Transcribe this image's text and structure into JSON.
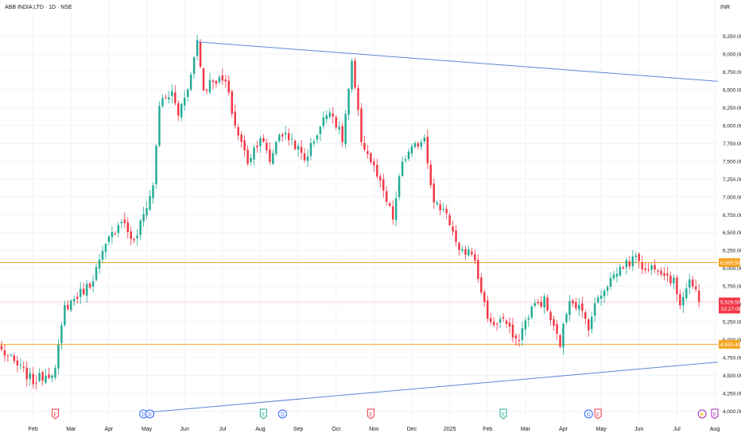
{
  "header": {
    "title": "ABB INDIA LTD · 1D · NSE",
    "currency": "INR"
  },
  "chart_data": {
    "type": "candlestick",
    "ylim": [
      4000,
      9250
    ],
    "y_ticks": [
      4000,
      4250,
      4500,
      4750,
      5000,
      5250,
      5500,
      5750,
      6000,
      6250,
      6500,
      6750,
      7000,
      7250,
      7500,
      7750,
      8000,
      8250,
      8500,
      8750,
      9000,
      9250
    ],
    "y_tick_labels": [
      "4,000.00",
      "4,250.00",
      "4,500.00",
      "4,750.00",
      "5,000.00",
      "5,250.00",
      "5,500.00",
      "5,750.00",
      "6,000.00",
      "6,250.00",
      "6,500.00",
      "6,750.00",
      "7,000.00",
      "7,250.00",
      "7,500.00",
      "7,750.00",
      "8,000.00",
      "8,250.00",
      "8,500.00",
      "8,750.00",
      "9,000.00",
      "9,250.00"
    ],
    "x_labels": [
      {
        "label": "Feb",
        "bar": 10
      },
      {
        "label": "Mar",
        "bar": 22
      },
      {
        "label": "Apr",
        "bar": 34
      },
      {
        "label": "May",
        "bar": 46
      },
      {
        "label": "Jun",
        "bar": 58
      },
      {
        "label": "Jul",
        "bar": 70
      },
      {
        "label": "Aug",
        "bar": 82
      },
      {
        "label": "Sep",
        "bar": 94
      },
      {
        "label": "Oct",
        "bar": 106
      },
      {
        "label": "Nov",
        "bar": 118
      },
      {
        "label": "Dec",
        "bar": 130
      },
      {
        "label": "2025",
        "bar": 142
      },
      {
        "label": "Feb",
        "bar": 154
      },
      {
        "label": "Mar",
        "bar": 166
      },
      {
        "label": "Apr",
        "bar": 178
      },
      {
        "label": "May",
        "bar": 190
      },
      {
        "label": "Jun",
        "bar": 202
      },
      {
        "label": "Jul",
        "bar": 214
      },
      {
        "label": "Aug",
        "bar": 226
      }
    ],
    "total_bars": 226,
    "anchors": [
      {
        "bar": 0,
        "price": 4850
      },
      {
        "bar": 10,
        "price": 4420
      },
      {
        "bar": 17,
        "price": 4580
      },
      {
        "bar": 20,
        "price": 5450
      },
      {
        "bar": 28,
        "price": 5780
      },
      {
        "bar": 34,
        "price": 6400
      },
      {
        "bar": 38,
        "price": 6700
      },
      {
        "bar": 42,
        "price": 6350
      },
      {
        "bar": 48,
        "price": 7150
      },
      {
        "bar": 50,
        "price": 8300
      },
      {
        "bar": 54,
        "price": 8450
      },
      {
        "bar": 56,
        "price": 8150
      },
      {
        "bar": 60,
        "price": 8700
      },
      {
        "bar": 62,
        "price": 9200
      },
      {
        "bar": 64,
        "price": 8500
      },
      {
        "bar": 67,
        "price": 8650
      },
      {
        "bar": 71,
        "price": 8600
      },
      {
        "bar": 74,
        "price": 8000
      },
      {
        "bar": 78,
        "price": 7500
      },
      {
        "bar": 82,
        "price": 7850
      },
      {
        "bar": 85,
        "price": 7500
      },
      {
        "bar": 88,
        "price": 7900
      },
      {
        "bar": 92,
        "price": 7800
      },
      {
        "bar": 96,
        "price": 7520
      },
      {
        "bar": 100,
        "price": 7900
      },
      {
        "bar": 104,
        "price": 8250
      },
      {
        "bar": 108,
        "price": 7800
      },
      {
        "bar": 111,
        "price": 8850
      },
      {
        "bar": 114,
        "price": 7800
      },
      {
        "bar": 118,
        "price": 7400
      },
      {
        "bar": 121,
        "price": 7050
      },
      {
        "bar": 124,
        "price": 6700
      },
      {
        "bar": 127,
        "price": 7500
      },
      {
        "bar": 131,
        "price": 7700
      },
      {
        "bar": 134,
        "price": 7850
      },
      {
        "bar": 137,
        "price": 6900
      },
      {
        "bar": 141,
        "price": 6800
      },
      {
        "bar": 145,
        "price": 6200
      },
      {
        "bar": 149,
        "price": 6250
      },
      {
        "bar": 153,
        "price": 5500
      },
      {
        "bar": 155,
        "price": 5200
      },
      {
        "bar": 159,
        "price": 5300
      },
      {
        "bar": 163,
        "price": 4950
      },
      {
        "bar": 168,
        "price": 5450
      },
      {
        "bar": 172,
        "price": 5550
      },
      {
        "bar": 175,
        "price": 5150
      },
      {
        "bar": 177,
        "price": 4950
      },
      {
        "bar": 180,
        "price": 5600
      },
      {
        "bar": 183,
        "price": 5450
      },
      {
        "bar": 186,
        "price": 5200
      },
      {
        "bar": 189,
        "price": 5600
      },
      {
        "bar": 193,
        "price": 5850
      },
      {
        "bar": 197,
        "price": 6050
      },
      {
        "bar": 200,
        "price": 6100
      },
      {
        "bar": 201,
        "price": 6230
      },
      {
        "bar": 204,
        "price": 5950
      },
      {
        "bar": 207,
        "price": 6050
      },
      {
        "bar": 210,
        "price": 5950
      },
      {
        "bar": 213,
        "price": 5800
      },
      {
        "bar": 215,
        "price": 5530
      },
      {
        "bar": 218,
        "price": 5850
      },
      {
        "bar": 221,
        "price": 5530
      }
    ],
    "trendlines": [
      {
        "name": "upper-trendline",
        "color": "#5b86d6",
        "from": {
          "bar": 62,
          "price": 9170
        },
        "to": {
          "bar": 292,
          "price": 8400
        }
      },
      {
        "name": "lower-trendline",
        "color": "#5b86d6",
        "from": {
          "bar": 48,
          "price": 3990
        },
        "to": {
          "bar": 292,
          "price": 4940
        }
      }
    ],
    "horizontal_lines": [
      {
        "name": "resistance-line",
        "price": 6080.5,
        "label": "6,080.50",
        "color": "#f5a623"
      },
      {
        "name": "support-line",
        "price": 4935.4,
        "label": "4,935.40",
        "color": "#f5a623"
      },
      {
        "name": "last-price-line",
        "price": 5529.5,
        "label": "5,529.50",
        "sublabel": "02:27:08",
        "color": "#f23645"
      }
    ],
    "events": [
      {
        "bar": 17,
        "symbol": "E",
        "type": "earnings",
        "color": "#f23645"
      },
      {
        "bar": 45,
        "symbol": "D",
        "type": "dividend",
        "color": "#2962ff"
      },
      {
        "bar": 47,
        "symbol": "D",
        "type": "dividend",
        "color": "#2962ff"
      },
      {
        "bar": 83,
        "symbol": "E",
        "type": "earnings",
        "color": "#22ab94"
      },
      {
        "bar": 89,
        "symbol": "D",
        "type": "dividend",
        "color": "#2962ff"
      },
      {
        "bar": 117,
        "symbol": "E",
        "type": "earnings",
        "color": "#f23645"
      },
      {
        "bar": 159,
        "symbol": "E",
        "type": "earnings",
        "color": "#22ab94"
      },
      {
        "bar": 186,
        "symbol": "D",
        "type": "dividend",
        "color": "#2962ff"
      },
      {
        "bar": 189,
        "symbol": "E",
        "type": "earnings",
        "color": "#f23645"
      },
      {
        "bar": 222,
        "symbol": "⚡",
        "type": "split",
        "color": "#9c27b0"
      },
      {
        "bar": 226,
        "symbol": "E",
        "type": "earnings",
        "color": "#9c27b0"
      }
    ],
    "colors": {
      "up": "#22ab94",
      "down": "#f23645",
      "grid": "#f0f3fa",
      "axis_text": "#131722",
      "trendline": "#5b86d6",
      "level": "#f5a623"
    },
    "grid": true
  }
}
